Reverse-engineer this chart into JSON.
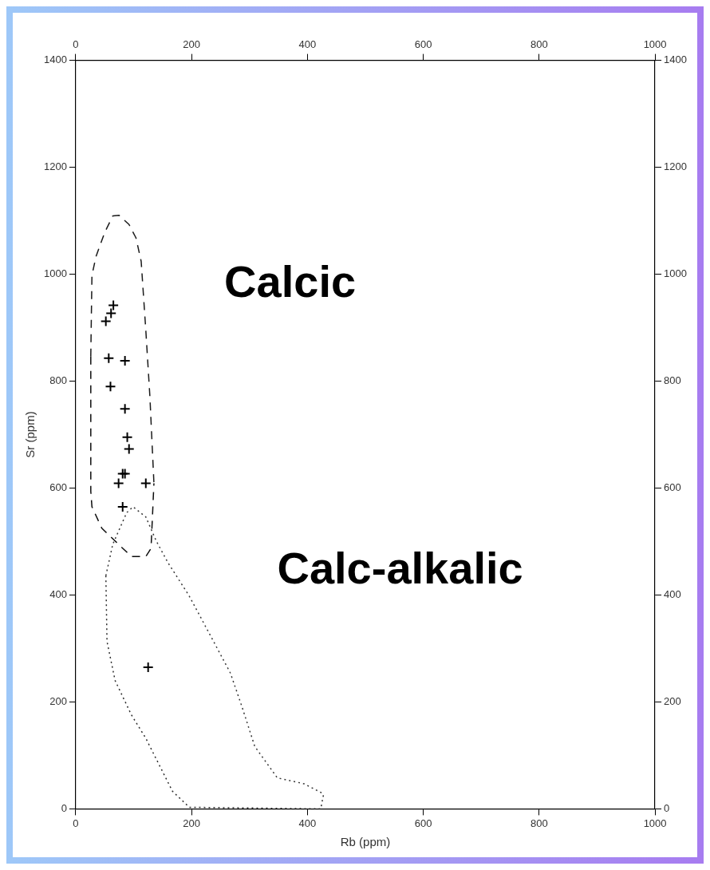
{
  "chart_data": {
    "type": "scatter",
    "xlabel": "Rb (ppm)",
    "ylabel": "Sr (ppm)",
    "xlim": [
      0,
      1000
    ],
    "xticks": [
      0,
      200,
      400,
      600,
      800,
      1000
    ],
    "x2lim": [
      0,
      1000
    ],
    "x2ticks": [
      0,
      200,
      400,
      600,
      800,
      1000
    ],
    "ylim": [
      0,
      1400
    ],
    "yticks": [
      0,
      200,
      400,
      600,
      800,
      1000,
      1200,
      1400
    ],
    "y2lim": [
      0,
      1400
    ],
    "y2ticks": [
      0,
      200,
      400,
      600,
      800,
      1000,
      1200,
      1400
    ],
    "grid": false,
    "legend": false,
    "marker": "cross",
    "annotations": [
      "Calcic",
      "Calc-alkalic"
    ],
    "series": [
      {
        "color": "#000000",
        "x": [
          52,
          61,
          65,
          85,
          57,
          60,
          85,
          89,
          92,
          74,
          85,
          121,
          81,
          81,
          125
        ],
        "values": [
          912,
          927,
          942,
          838,
          843,
          790,
          748,
          695,
          673,
          609,
          627,
          609,
          627,
          565,
          265
        ]
      },
      {
        "type": "line",
        "color": "#1a1a1a",
        "marker": "none",
        "line_style": "dashed",
        "x": [
          26,
          28,
          35,
          50,
          64,
          75,
          92,
          104,
          113,
          121,
          128,
          135
        ],
        "values": [
          846,
          998,
          1033,
          1078,
          1109,
          1110,
          1093,
          1068,
          1024,
          895,
          772,
          609
        ]
      },
      {
        "type": "line",
        "color": "#0d0d0d",
        "marker": "none",
        "line_style": "dashed",
        "x": [
          26,
          26,
          28,
          45,
          68,
          96,
          121,
          130,
          135
        ],
        "values": [
          846,
          594,
          565,
          525,
          501,
          472,
          472,
          487,
          609
        ]
      },
      {
        "type": "line",
        "color": "#383838",
        "marker": "none",
        "line_style": "dotted",
        "x": [
          52,
          64,
          88,
          99,
          121,
          139,
          159,
          196,
          238,
          267,
          287,
          309,
          348,
          394,
          428
        ],
        "values": [
          436,
          495,
          554,
          565,
          546,
          501,
          461,
          398,
          313,
          254,
          191,
          117,
          58,
          47,
          28
        ]
      },
      {
        "type": "line",
        "color": "#2b2b2b",
        "marker": "none",
        "line_style": "dotted",
        "x": [
          52,
          54,
          68,
          96,
          121,
          167,
          196,
          423,
          428
        ],
        "values": [
          436,
          313,
          240,
          176,
          132,
          33,
          3,
          0,
          28
        ]
      }
    ]
  }
}
